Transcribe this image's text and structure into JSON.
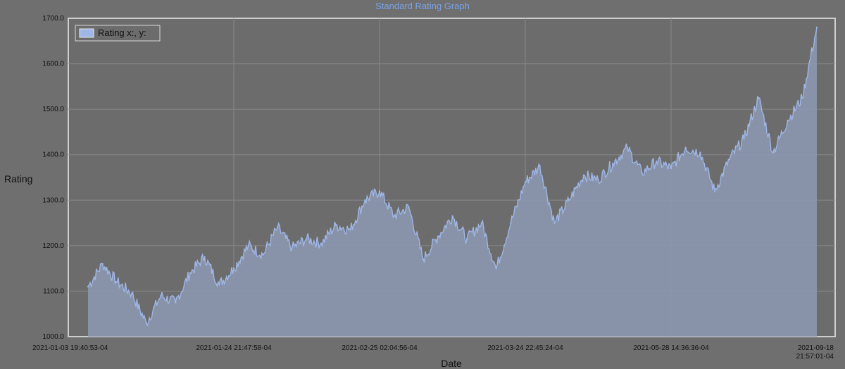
{
  "chart_data": {
    "type": "area",
    "title": "Standard Rating Graph",
    "xlabel": "Date",
    "ylabel": "Rating",
    "ylim": [
      1000,
      1700
    ],
    "y_ticks": [
      "1000.0",
      "1100.0",
      "1200.0",
      "1300.0",
      "1400.0",
      "1500.0",
      "1600.0",
      "1700.0"
    ],
    "x_ticks": [
      "2021-01-03 19:40:53-04",
      "2021-01-24 21:47:58-04",
      "2021-02-25 02:04:56-04",
      "2021-03-24 22:45:24-04",
      "2021-05-28 14:36:36-04",
      "2021-09-18 21:57:01-04"
    ],
    "grid": true,
    "legend_position": "top-left",
    "colors": {
      "series": "#9fb6e6",
      "fill": "#8a96ad",
      "background": "#6f6f6f",
      "plot_background": "#6c6c6c",
      "title": "#7aa3e6"
    },
    "series": [
      {
        "name": "Rating x:, y:",
        "x": [
          0,
          2,
          4,
          6,
          8,
          10,
          12,
          14,
          16,
          18,
          20,
          22,
          24,
          26,
          28,
          30,
          32,
          34,
          36,
          38,
          40,
          42,
          44,
          46,
          48,
          50,
          52,
          54,
          56,
          58,
          60,
          62,
          64,
          66,
          68,
          70,
          72,
          74,
          76,
          78,
          80,
          82,
          84,
          86,
          88,
          90,
          92,
          94,
          96,
          98,
          100
        ],
        "values": [
          1110,
          1160,
          1120,
          1095,
          1030,
          1090,
          1075,
          1140,
          1175,
          1115,
          1150,
          1200,
          1180,
          1240,
          1195,
          1215,
          1205,
          1245,
          1235,
          1300,
          1320,
          1265,
          1285,
          1170,
          1220,
          1265,
          1215,
          1250,
          1150,
          1250,
          1340,
          1375,
          1250,
          1300,
          1355,
          1345,
          1380,
          1415,
          1360,
          1385,
          1370,
          1415,
          1405,
          1320,
          1390,
          1435,
          1525,
          1405,
          1475,
          1525,
          1680
        ]
      }
    ]
  }
}
